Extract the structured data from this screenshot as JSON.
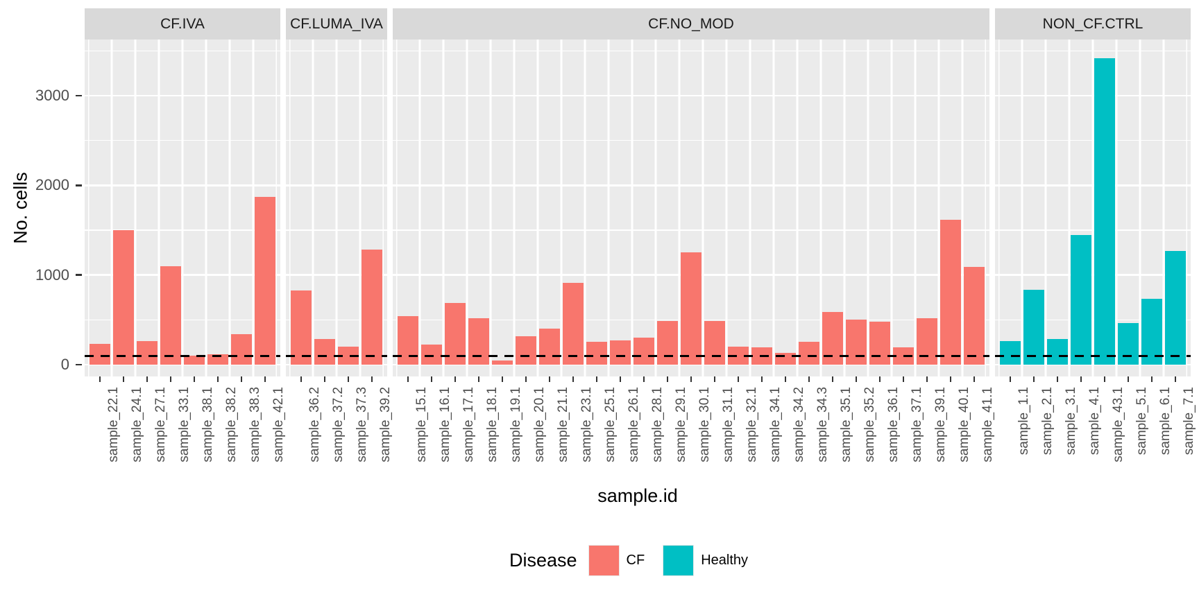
{
  "chart_data": {
    "type": "bar",
    "title": "",
    "xlabel": "sample.id",
    "ylabel": "No. cells",
    "yticks": [
      0,
      1000,
      2000,
      3000
    ],
    "ylim": [
      0,
      3600
    ],
    "grid": true,
    "reference_line_y": 100,
    "reference_line_style": "dashed-black",
    "panel_background": "#EBEBEB",
    "strip_background": "#D9D9D9",
    "legend_position": "bottom",
    "legend": {
      "title": "Disease",
      "entries": [
        {
          "label": "CF",
          "color": "#F8766D"
        },
        {
          "label": "Healthy",
          "color": "#00BFC4"
        }
      ]
    },
    "facets": [
      {
        "label": "CF.IVA",
        "group": "CF",
        "categories": [
          "sample_22.1",
          "sample_24.1",
          "sample_27.1",
          "sample_33.1",
          "sample_38.1",
          "sample_38.2",
          "sample_38.3",
          "sample_42.1"
        ],
        "values": [
          230,
          1500,
          260,
          1100,
          100,
          115,
          340,
          1870
        ]
      },
      {
        "label": "CF.LUMA_IVA",
        "group": "CF",
        "categories": [
          "sample_36.2",
          "sample_37.2",
          "sample_37.3",
          "sample_39.2"
        ],
        "values": [
          825,
          290,
          200,
          1285
        ]
      },
      {
        "label": "CF.NO_MOD",
        "group": "CF",
        "categories": [
          "sample_15.1",
          "sample_16.1",
          "sample_17.1",
          "sample_18.1",
          "sample_19.1",
          "sample_20.1",
          "sample_21.1",
          "sample_23.1",
          "sample_25.1",
          "sample_26.1",
          "sample_28.1",
          "sample_29.1",
          "sample_30.1",
          "sample_31.1",
          "sample_32.1",
          "sample_34.1",
          "sample_34.2",
          "sample_34.3",
          "sample_35.1",
          "sample_35.2",
          "sample_36.1",
          "sample_37.1",
          "sample_39.1",
          "sample_40.1",
          "sample_41.1"
        ],
        "values": [
          540,
          225,
          685,
          520,
          50,
          320,
          400,
          910,
          255,
          270,
          305,
          490,
          1250,
          485,
          205,
          195,
          130,
          255,
          590,
          505,
          480,
          195,
          515,
          1615,
          1090
        ]
      },
      {
        "label": "NON_CF.CTRL",
        "group": "Healthy",
        "categories": [
          "sample_1.1",
          "sample_2.1",
          "sample_3.1",
          "sample_4.1",
          "sample_43.1",
          "sample_5.1",
          "sample_6.1",
          "sample_7.1"
        ],
        "values": [
          265,
          835,
          290,
          1445,
          3420,
          465,
          735,
          1265
        ]
      }
    ],
    "colors": {
      "CF": "#F8766D",
      "Healthy": "#00BFC4"
    }
  }
}
